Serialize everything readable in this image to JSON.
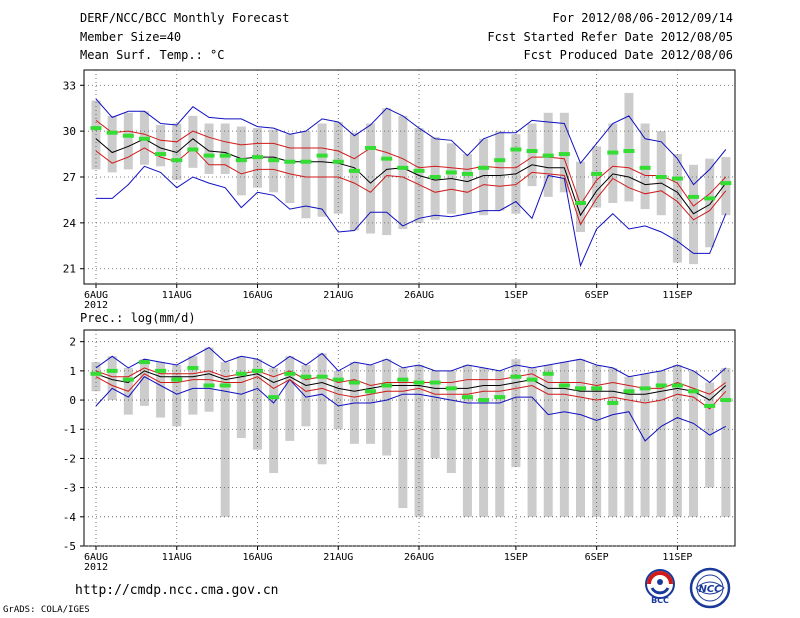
{
  "header": {
    "title": "DERF/NCC/BCC Monthly Forecast",
    "member_size": "Member Size=40",
    "variable": "Mean Surf. Temp.: °C",
    "forecast_period": "For 2012/08/06-2012/09/14",
    "start_date": "Fcst Started Refer Date 2012/08/05",
    "produced_date": "Fcst Produced Date 2012/08/06"
  },
  "footer": {
    "url": "http://cmdp.ncc.cma.gov.cn",
    "grads": "GrADS: COLA/IGES"
  },
  "logos": {
    "left_text": "BCC",
    "right_text": "NCC"
  },
  "colors": {
    "box": "#cccccc",
    "mean": "#000000",
    "spread": "#d01a1a",
    "extreme": "#1010c0",
    "obs": "#33dd33",
    "grid": "#555555"
  },
  "chart_data": [
    {
      "type": "line",
      "title": "Mean Surf. Temp.: °C",
      "ylim": [
        20,
        34
      ],
      "yticks": [
        "21",
        "24",
        "27",
        "30",
        "33"
      ],
      "ytick_values": [
        21,
        24,
        27,
        30,
        33
      ],
      "xtick_labels": [
        "6AUG",
        "11AUG",
        "16AUG",
        "21AUG",
        "26AUG",
        "1SEP",
        "6SEP",
        "11SEP"
      ],
      "xtick_days": [
        0,
        5,
        10,
        15,
        20,
        26,
        31,
        36
      ],
      "year_label": "2012",
      "days": 40,
      "max": [
        32.1,
        30.9,
        31.3,
        31.3,
        30.5,
        30.4,
        31.6,
        30.9,
        30.8,
        30.8,
        30.3,
        30.2,
        29.8,
        30.0,
        30.8,
        30.6,
        29.7,
        30.4,
        31.5,
        31.0,
        30.2,
        29.5,
        29.4,
        28.4,
        29.5,
        29.9,
        29.9,
        30.7,
        30.6,
        30.5,
        27.9,
        29.2,
        30.5,
        31.0,
        29.5,
        29.3,
        28.2,
        26.5,
        27.5,
        28.8
      ],
      "p75": [
        30.7,
        29.9,
        30.0,
        29.8,
        29.4,
        29.3,
        30.0,
        29.6,
        29.3,
        29.1,
        29.2,
        29.2,
        28.9,
        28.9,
        28.9,
        28.7,
        28.2,
        28.9,
        28.6,
        28.2,
        27.6,
        27.7,
        27.6,
        27.5,
        27.7,
        27.6,
        27.6,
        28.3,
        28.3,
        28.2,
        25.2,
        26.8,
        27.7,
        27.6,
        27.1,
        27.1,
        26.6,
        25.1,
        25.9,
        27.0
      ],
      "mean": [
        29.5,
        28.6,
        29.0,
        29.5,
        28.9,
        28.6,
        29.5,
        28.7,
        28.6,
        28.2,
        28.3,
        28.3,
        28.0,
        28.0,
        28.0,
        27.9,
        27.6,
        26.6,
        27.5,
        27.6,
        27.1,
        26.8,
        26.9,
        26.7,
        27.1,
        27.1,
        27.2,
        27.8,
        27.6,
        27.6,
        24.5,
        26.1,
        27.2,
        27.0,
        26.5,
        26.6,
        26.0,
        24.6,
        25.2,
        26.6
      ],
      "p25": [
        28.7,
        27.9,
        28.3,
        28.9,
        28.3,
        28.0,
        28.9,
        27.8,
        27.8,
        27.2,
        27.5,
        27.5,
        27.2,
        27.0,
        27.0,
        27.0,
        26.6,
        26.0,
        27.1,
        27.0,
        26.5,
        26.0,
        26.2,
        26.0,
        26.5,
        26.4,
        26.5,
        27.3,
        27.2,
        27.1,
        23.9,
        25.6,
        26.9,
        26.3,
        25.9,
        26.1,
        25.4,
        24.2,
        24.8,
        26.1
      ],
      "min": [
        25.6,
        25.6,
        26.5,
        27.7,
        27.3,
        26.3,
        27.0,
        26.6,
        26.3,
        25.0,
        26.0,
        25.8,
        24.9,
        25.1,
        24.9,
        23.4,
        23.5,
        24.7,
        24.7,
        23.8,
        24.3,
        24.5,
        24.4,
        24.6,
        24.8,
        24.8,
        25.4,
        24.3,
        27.1,
        26.9,
        21.2,
        23.6,
        24.6,
        23.6,
        23.8,
        23.4,
        22.8,
        22.0,
        22.0,
        24.6
      ],
      "box_top": [
        32.0,
        31.0,
        31.2,
        31.3,
        30.4,
        30.5,
        31.0,
        30.5,
        30.5,
        30.3,
        30.2,
        30.1,
        29.8,
        30.0,
        30.5,
        30.6,
        29.9,
        30.5,
        31.5,
        31.0,
        30.2,
        29.6,
        29.2,
        28.5,
        29.5,
        30.0,
        29.8,
        30.5,
        31.2,
        31.2,
        28.0,
        29.0,
        30.5,
        32.5,
        30.5,
        30.0,
        28.5,
        27.8,
        28.2,
        28.3
      ],
      "box_bottom": [
        27.5,
        27.3,
        27.5,
        27.8,
        27.7,
        26.8,
        27.6,
        27.2,
        27.2,
        25.8,
        26.3,
        26.0,
        25.3,
        24.3,
        24.4,
        24.6,
        23.5,
        23.3,
        23.2,
        23.6,
        24.0,
        24.2,
        24.6,
        24.6,
        24.5,
        24.8,
        24.6,
        26.4,
        25.7,
        26.0,
        23.4,
        25.0,
        25.3,
        25.4,
        24.9,
        24.5,
        21.4,
        21.3,
        22.4,
        24.5
      ],
      "obs": [
        30.2,
        29.9,
        29.7,
        29.5,
        28.5,
        28.1,
        28.8,
        28.4,
        28.4,
        28.1,
        28.3,
        28.1,
        28.0,
        28.0,
        28.4,
        28.0,
        27.4,
        28.9,
        28.2,
        27.6,
        27.4,
        27.0,
        27.3,
        27.2,
        27.6,
        28.1,
        28.8,
        28.7,
        28.4,
        28.5,
        25.3,
        27.2,
        28.6,
        28.7,
        27.6,
        27.0,
        26.9,
        25.7,
        25.6,
        26.6
      ]
    },
    {
      "type": "line",
      "title": "Prec.: log(mm/d)",
      "ylim": [
        -5,
        2.4
      ],
      "yticks": [
        "-5",
        "-4",
        "-3",
        "-2",
        "-1",
        "0",
        "1",
        "2"
      ],
      "ytick_values": [
        -5,
        -4,
        -3,
        -2,
        -1,
        0,
        1,
        2
      ],
      "xtick_labels": [
        "6AUG",
        "11AUG",
        "16AUG",
        "21AUG",
        "26AUG",
        "1SEP",
        "6SEP",
        "11SEP"
      ],
      "xtick_days": [
        0,
        5,
        10,
        15,
        20,
        26,
        31,
        36
      ],
      "year_label": "2012",
      "days": 40,
      "max": [
        1.1,
        1.5,
        1.1,
        1.4,
        1.3,
        1.2,
        1.5,
        1.8,
        1.3,
        1.5,
        1.4,
        1.1,
        1.5,
        1.2,
        1.6,
        1.0,
        1.3,
        1.2,
        1.4,
        1.1,
        1.2,
        1.0,
        1.0,
        1.2,
        1.1,
        1.0,
        1.2,
        1.1,
        1.2,
        1.3,
        1.4,
        1.2,
        1.1,
        0.8,
        0.9,
        1.0,
        1.2,
        1.0,
        0.6,
        1.1
      ],
      "p75": [
        1.0,
        0.8,
        0.8,
        1.1,
        0.9,
        0.9,
        0.9,
        1.0,
        0.8,
        0.9,
        1.0,
        0.8,
        1.0,
        0.7,
        0.8,
        0.6,
        0.7,
        0.5,
        0.6,
        0.6,
        0.6,
        0.6,
        0.6,
        0.7,
        0.7,
        0.7,
        0.8,
        0.9,
        0.6,
        0.6,
        0.6,
        0.5,
        0.6,
        0.5,
        0.4,
        0.4,
        0.6,
        0.4,
        0.2,
        0.6
      ],
      "mean": [
        0.9,
        0.7,
        0.6,
        1.0,
        0.8,
        0.8,
        0.8,
        0.9,
        0.7,
        0.8,
        0.9,
        0.6,
        0.8,
        0.5,
        0.6,
        0.4,
        0.3,
        0.4,
        0.5,
        0.5,
        0.5,
        0.4,
        0.4,
        0.4,
        0.5,
        0.5,
        0.6,
        0.7,
        0.4,
        0.4,
        0.3,
        0.3,
        0.3,
        0.2,
        0.2,
        0.3,
        0.4,
        0.3,
        0.0,
        0.5
      ],
      "p25": [
        0.8,
        0.5,
        0.3,
        0.9,
        0.6,
        0.6,
        0.7,
        0.7,
        0.6,
        0.6,
        0.8,
        0.4,
        0.7,
        0.3,
        0.4,
        0.2,
        0.1,
        0.2,
        0.3,
        0.3,
        0.4,
        0.2,
        0.2,
        0.2,
        0.3,
        0.3,
        0.4,
        0.5,
        0.2,
        0.2,
        0.1,
        0.0,
        0.1,
        0.0,
        -0.1,
        0.0,
        0.2,
        0.1,
        -0.3,
        0.3
      ],
      "min": [
        -0.2,
        0.4,
        0.1,
        0.8,
        0.5,
        0.2,
        0.4,
        0.4,
        0.3,
        0.2,
        0.4,
        -0.1,
        0.7,
        0.1,
        0.2,
        -0.2,
        -0.1,
        -0.1,
        0.0,
        0.2,
        0.2,
        0.1,
        0.0,
        -0.1,
        -0.1,
        -0.1,
        0.1,
        0.1,
        -0.5,
        -0.4,
        -0.5,
        -0.7,
        -0.5,
        -0.4,
        -1.4,
        -0.9,
        -0.6,
        -0.8,
        -1.2,
        -0.9
      ],
      "box_top": [
        1.3,
        1.5,
        1.1,
        1.4,
        1.3,
        1.2,
        1.5,
        1.8,
        1.3,
        1.5,
        1.4,
        1.1,
        1.5,
        1.2,
        1.6,
        1.0,
        1.3,
        1.2,
        1.4,
        1.1,
        1.2,
        1.0,
        1.0,
        1.2,
        1.1,
        1.0,
        1.4,
        1.1,
        1.2,
        1.3,
        1.4,
        1.2,
        1.1,
        0.8,
        0.9,
        1.0,
        1.2,
        1.0,
        0.6,
        1.1
      ],
      "box_bottom": [
        0.3,
        0.0,
        -0.5,
        -0.2,
        -0.6,
        -0.9,
        -0.5,
        -0.4,
        -4.0,
        -1.3,
        -1.7,
        -2.5,
        -1.4,
        -0.9,
        -2.2,
        -1.0,
        -1.5,
        -1.5,
        -1.9,
        -3.7,
        -4.0,
        -2.0,
        -2.5,
        -4.0,
        -4.0,
        -4.0,
        -2.3,
        -4.0,
        -4.0,
        -4.0,
        -4.0,
        -4.0,
        -4.0,
        -4.0,
        -4.0,
        -4.0,
        -4.0,
        -4.0,
        -3.0,
        -4.0
      ],
      "obs": [
        0.9,
        1.0,
        0.7,
        1.3,
        1.0,
        0.7,
        1.1,
        0.5,
        0.5,
        0.9,
        1.0,
        0.1,
        0.9,
        0.8,
        0.8,
        0.7,
        0.6,
        0.3,
        0.5,
        0.7,
        0.6,
        0.6,
        0.4,
        0.1,
        0.0,
        0.1,
        0.8,
        0.7,
        0.9,
        0.5,
        0.4,
        0.4,
        -0.1,
        0.3,
        0.4,
        0.5,
        0.5,
        0.3,
        -0.2,
        0.0
      ]
    }
  ]
}
